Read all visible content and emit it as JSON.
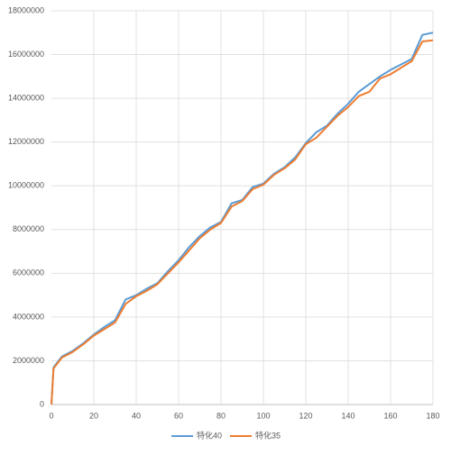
{
  "chart_data": {
    "type": "line",
    "x": [
      0,
      1,
      5,
      10,
      15,
      20,
      25,
      30,
      35,
      40,
      45,
      50,
      55,
      60,
      65,
      70,
      75,
      80,
      85,
      90,
      95,
      100,
      105,
      110,
      115,
      120,
      125,
      130,
      135,
      140,
      145,
      150,
      155,
      160,
      165,
      170,
      175,
      180
    ],
    "series": [
      {
        "name": "特化40",
        "color": "#5b9bd5",
        "values": [
          0,
          1700000,
          2200000,
          2450000,
          2800000,
          3200000,
          3550000,
          3850000,
          4800000,
          5000000,
          5300000,
          5550000,
          6100000,
          6600000,
          7200000,
          7700000,
          8100000,
          8350000,
          9200000,
          9350000,
          9950000,
          10100000,
          10550000,
          10850000,
          11300000,
          11950000,
          12450000,
          12750000,
          13300000,
          13750000,
          14300000,
          14650000,
          15000000,
          15300000,
          15550000,
          15800000,
          16900000,
          17000000
        ]
      },
      {
        "name": "特化35",
        "color": "#ed7d31",
        "values": [
          0,
          1650000,
          2150000,
          2400000,
          2750000,
          3150000,
          3450000,
          3750000,
          4600000,
          4950000,
          5200000,
          5500000,
          6000000,
          6500000,
          7050000,
          7600000,
          8000000,
          8300000,
          9050000,
          9300000,
          9850000,
          10050000,
          10500000,
          10800000,
          11200000,
          11900000,
          12200000,
          12700000,
          13200000,
          13600000,
          14100000,
          14300000,
          14900000,
          15100000,
          15400000,
          15700000,
          16600000,
          16650000
        ]
      }
    ],
    "xlim": [
      0,
      180
    ],
    "xticks": [
      0,
      20,
      40,
      60,
      80,
      100,
      120,
      140,
      160,
      180
    ],
    "ylim": [
      0,
      18000000
    ],
    "yticks": [
      0,
      2000000,
      4000000,
      6000000,
      8000000,
      10000000,
      12000000,
      14000000,
      16000000,
      18000000
    ],
    "grid": true,
    "legend": "bottom"
  }
}
